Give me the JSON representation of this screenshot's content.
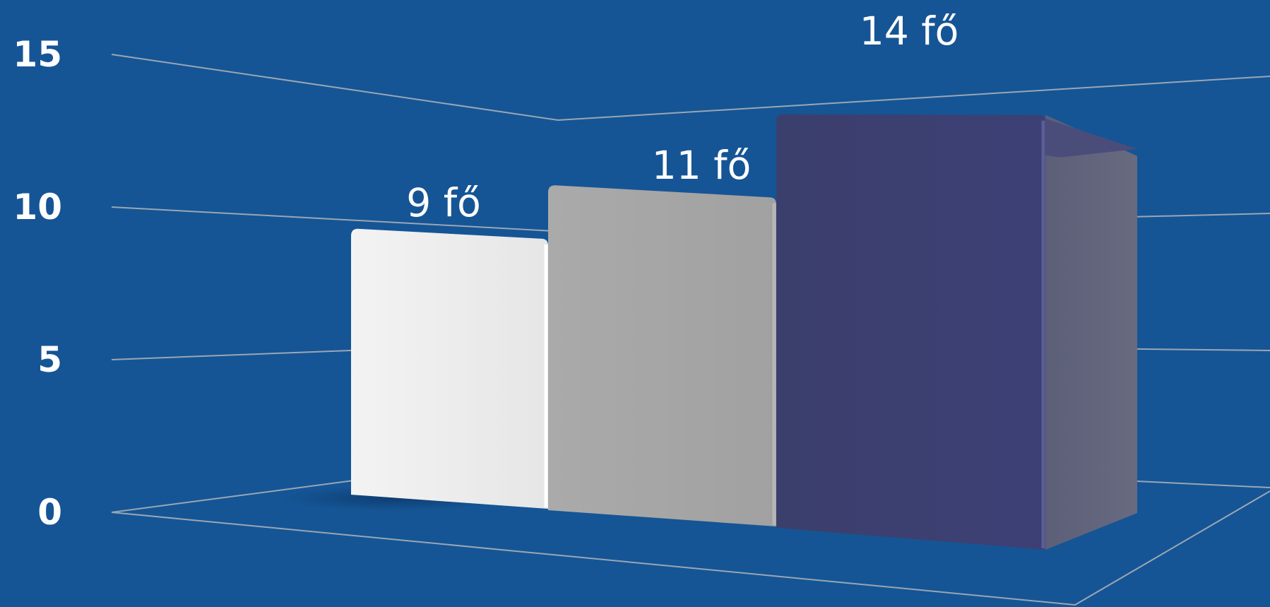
{
  "chart_data": {
    "type": "bar",
    "title": "",
    "xlabel": "",
    "ylabel": "",
    "ylim": [
      0,
      15
    ],
    "y_ticks": [
      "0",
      "5",
      "10",
      "15"
    ],
    "grid": true,
    "legend": "none",
    "categories": [
      "",
      "",
      ""
    ],
    "values": [
      9,
      11,
      14
    ],
    "labels": [
      "9 fő",
      "11 fő",
      "14 fő"
    ],
    "colors": [
      "#ebebeb",
      "#a6a6a6",
      "#3d3f6e"
    ],
    "background": "#155595"
  }
}
